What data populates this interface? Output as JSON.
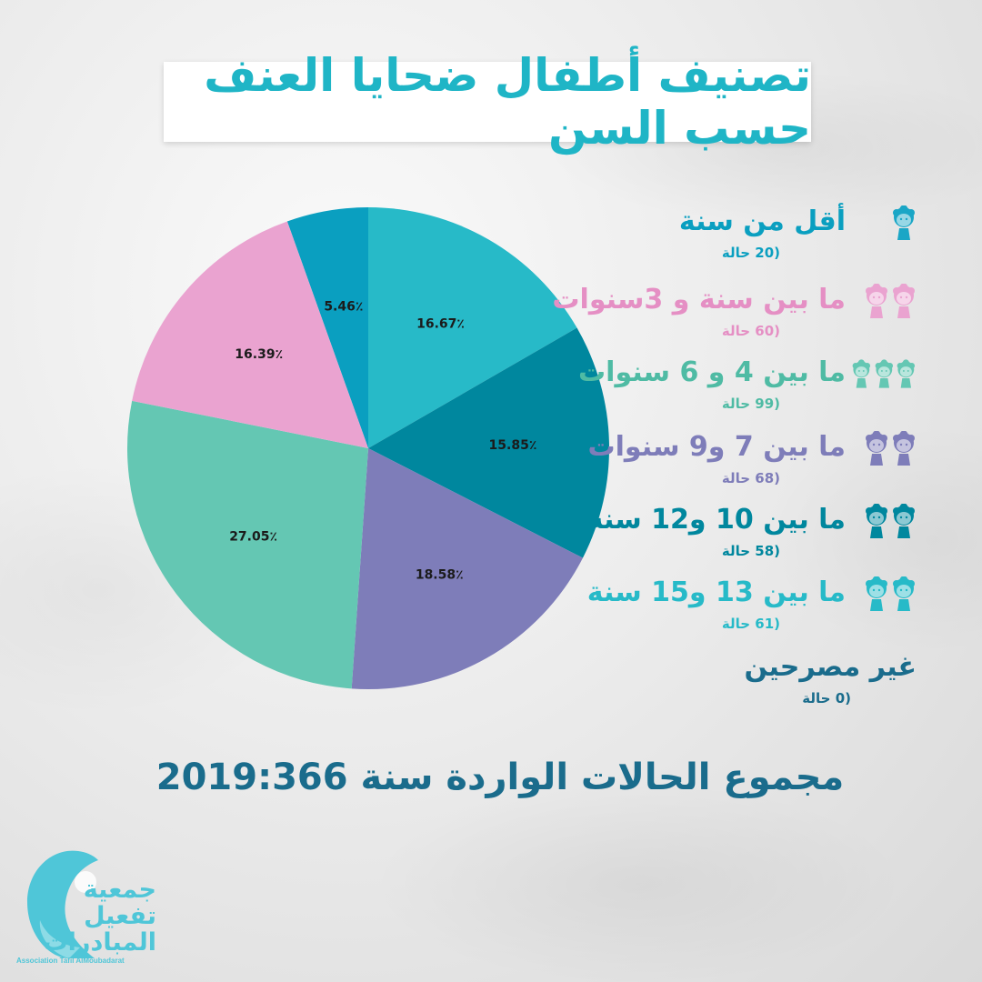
{
  "title": "تصنيف أطفال ضحايا العنف حسب السن",
  "chart_data": {
    "type": "pie",
    "slices": [
      {
        "label": "أقل من سنة",
        "count_text": "(20 حالة",
        "value": 5.46,
        "value_label": "5.46٪",
        "color": "#0a9fc0",
        "icon_count": 1
      },
      {
        "label": "ما بين 13 و15 سنة",
        "count_text": "(61 حالة",
        "value": 16.67,
        "value_label": "16.67٪",
        "color": "#27bac8",
        "icon_count": 2
      },
      {
        "label": "ما بين 10 و12 سنة",
        "count_text": "(58 حالة",
        "value": 15.85,
        "value_label": "15.85٪",
        "color": "#00879e",
        "icon_count": 2
      },
      {
        "label": "ما بين 7 و9 سنوات",
        "count_text": "(68 حالة",
        "value": 18.58,
        "value_label": "18.58٪",
        "color": "#7e7db9",
        "icon_count": 2
      },
      {
        "label": "ما بين 4 و 6 سنوات",
        "count_text": "(99 حالة",
        "value": 27.05,
        "value_label": "27.05٪",
        "color": "#64c7b3",
        "icon_count": 3
      },
      {
        "label": "ما بين سنة و 3سنوات",
        "count_text": "(60 حالة",
        "value": 16.39,
        "value_label": "16.39٪",
        "color": "#eaa3d0",
        "icon_count": 2
      }
    ]
  },
  "legend": [
    {
      "label": "أقل من سنة",
      "count_text": "(20 حالة",
      "color": "#0a9fc0",
      "icon_color": "#1aa6c6",
      "icon_count": 1
    },
    {
      "label": "ما بين سنة و 3سنوات",
      "count_text": "(60 حالة",
      "color": "#e58fc4",
      "icon_color": "#eaa3d0",
      "icon_count": 2
    },
    {
      "label": "ما بين 4 و 6 سنوات",
      "count_text": "(99 حالة",
      "color": "#4fbba4",
      "icon_color": "#64c7b3",
      "icon_count": 3
    },
    {
      "label": "ما بين 7 و9 سنوات",
      "count_text": "(68 حالة",
      "color": "#7e7db9",
      "icon_color": "#7e7db9",
      "icon_count": 2
    },
    {
      "label": "ما بين 10 و12 سنة",
      "count_text": "(58 حالة",
      "color": "#00879e",
      "icon_color": "#00879e",
      "icon_count": 2
    },
    {
      "label": "ما بين 13 و15 سنة",
      "count_text": "(61 حالة",
      "color": "#27bac8",
      "icon_color": "#27bac8",
      "icon_count": 2
    },
    {
      "label": "غير مصرحين",
      "count_text": "(0 حالة",
      "color": "#1a6c8c",
      "icon_color": "#1a6c8c",
      "icon_count": 0
    }
  ],
  "total": {
    "label": "مجموع الحالات الواردة سنة 2019:",
    "value": "366"
  },
  "logo": {
    "text": "جمعية\nتفعيل\nالمبادرات",
    "subtitle": "Association Tafil AlMoubadarat",
    "color": "#4fc6d8"
  },
  "icons": {
    "kid": "child-head-icon",
    "logo": "mother-child-logo-icon"
  }
}
